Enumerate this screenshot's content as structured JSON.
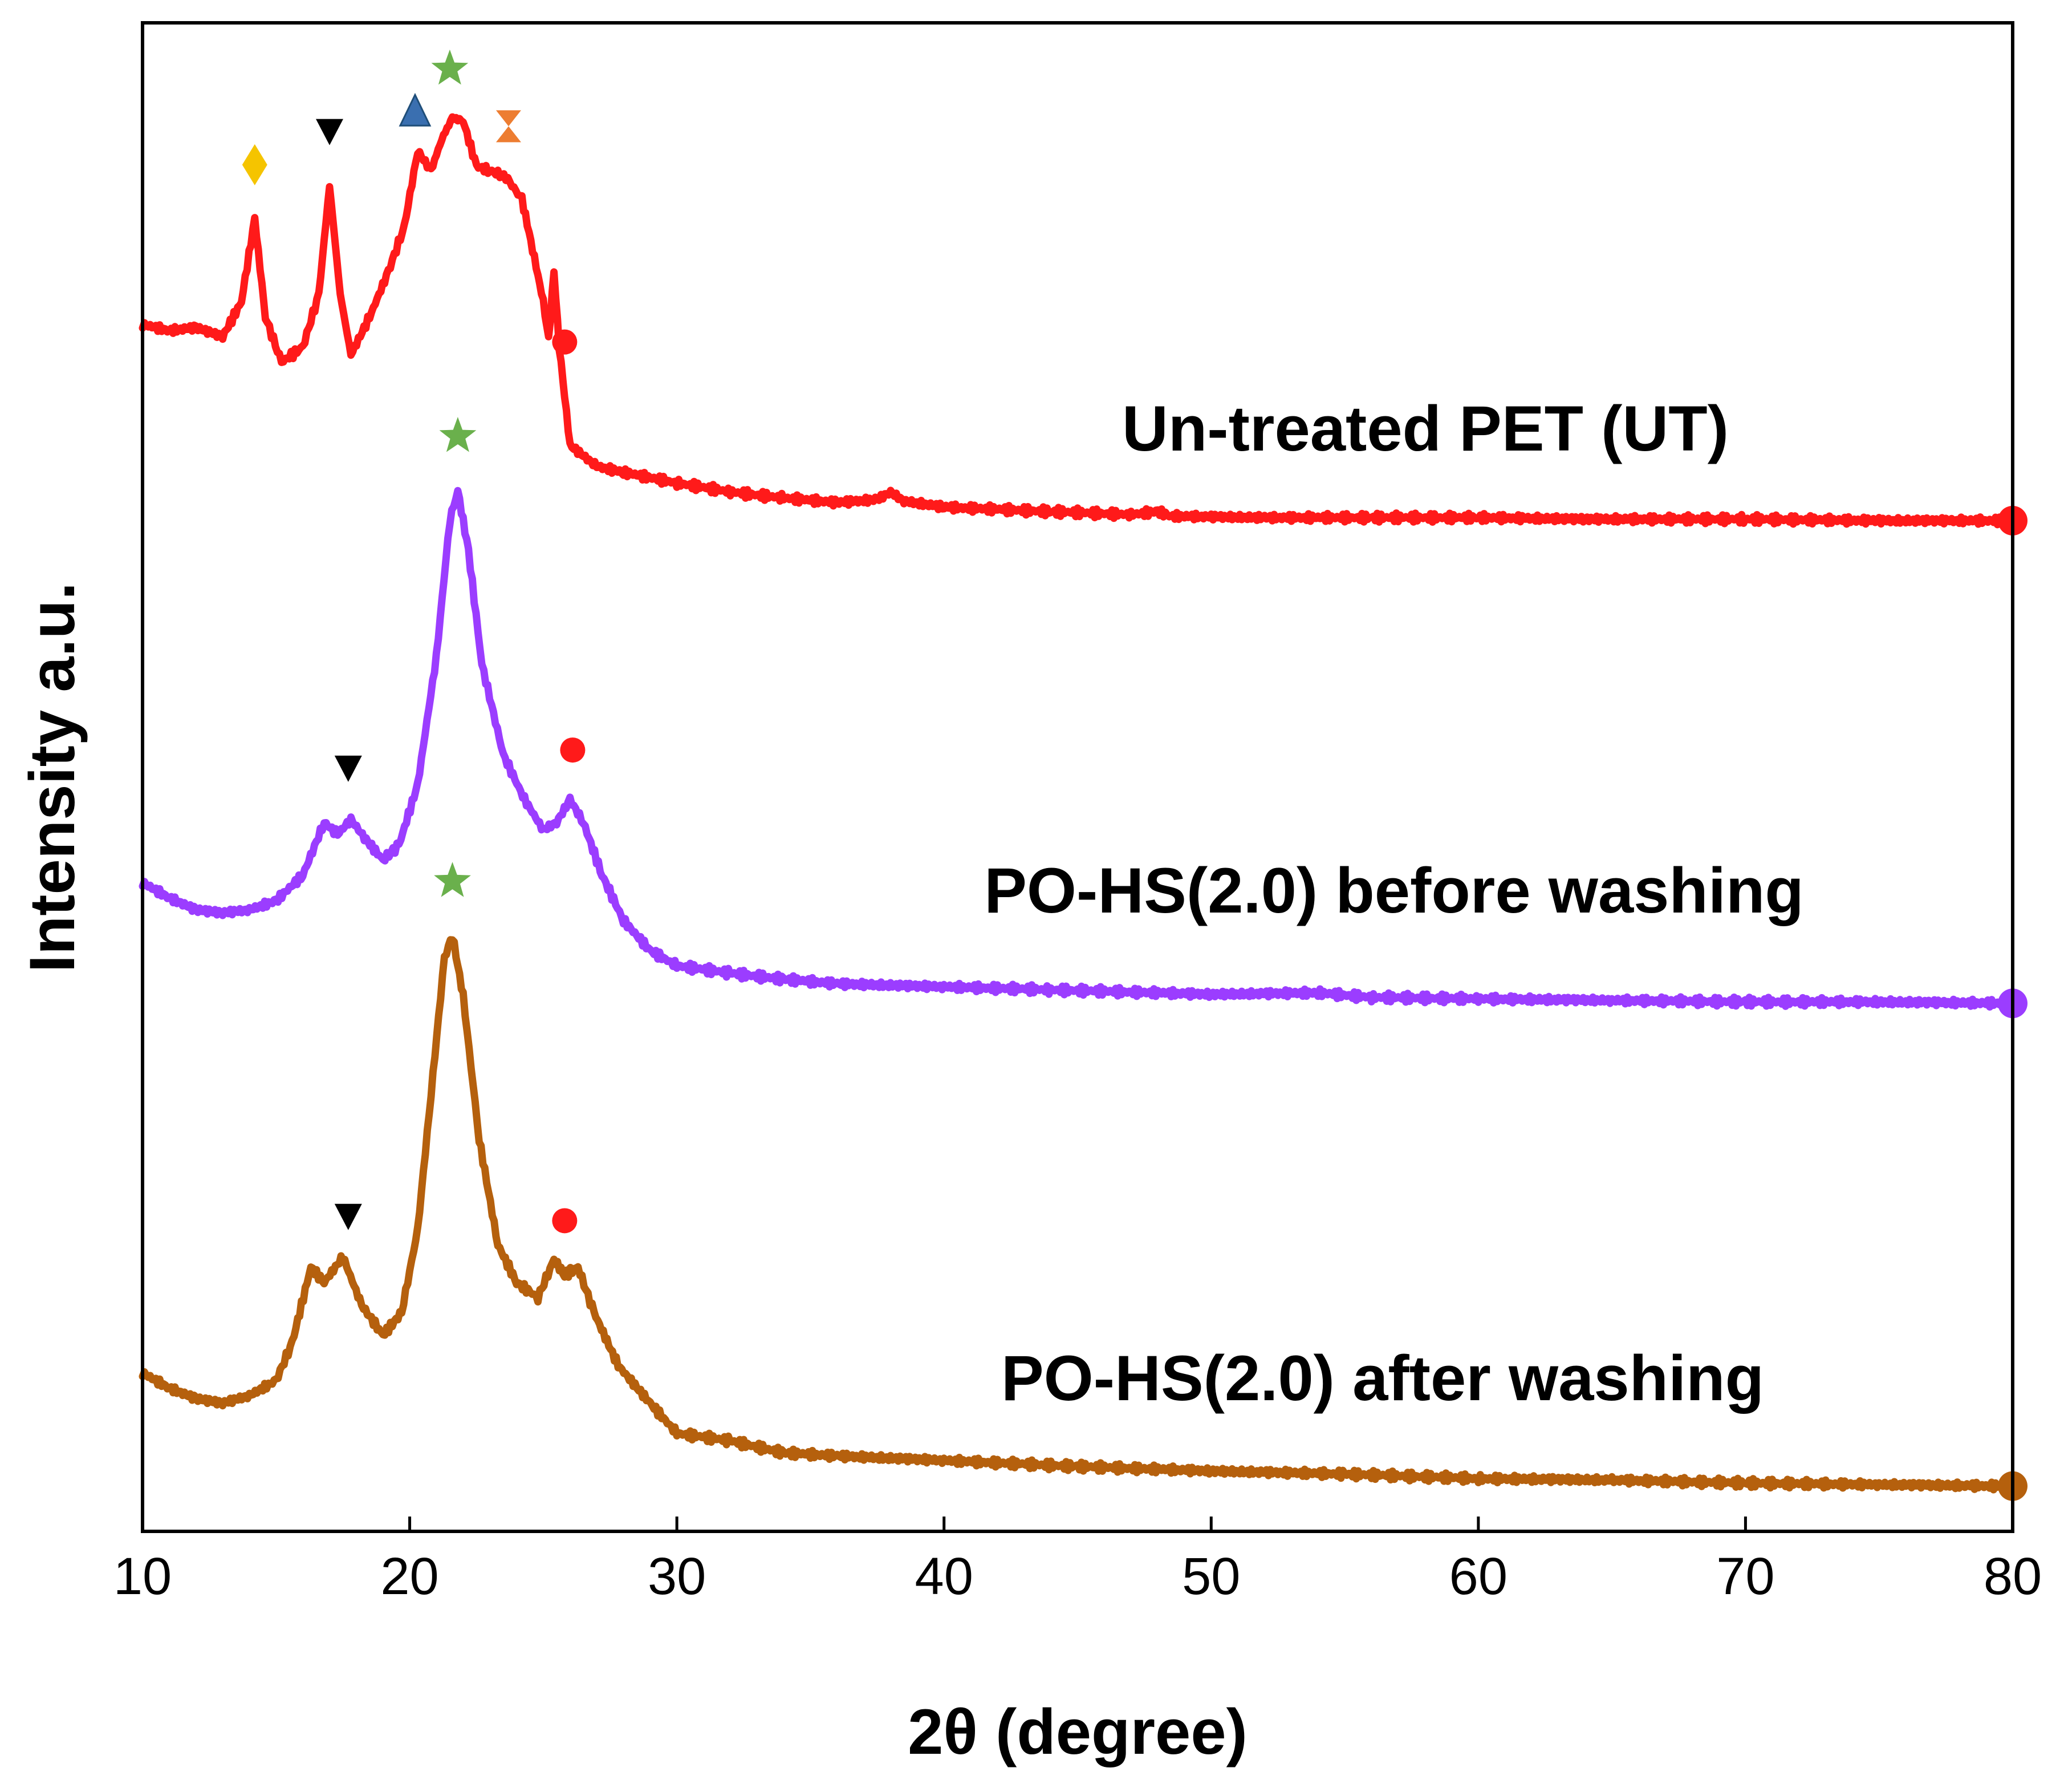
{
  "chart_data": {
    "type": "line",
    "title": "",
    "xlabel": "2θ (degree)",
    "ylabel": "Intensity a.u.",
    "xlim": [
      10,
      80
    ],
    "ylim": [
      0,
      100
    ],
    "x_ticks": [
      "10",
      "20",
      "30",
      "40",
      "50",
      "60",
      "70",
      "80"
    ],
    "grid": false,
    "legend": "inline labels beside each trace",
    "series": [
      {
        "name": "Un-treated PET (UT)",
        "color": "#ff1a1a",
        "baseline": 67,
        "points": [
          [
            10,
            80.0
          ],
          [
            11,
            79.6
          ],
          [
            12,
            79.8
          ],
          [
            13,
            79.2
          ],
          [
            13.7,
            81.5
          ],
          [
            14.2,
            87.0
          ],
          [
            14.6,
            80.5
          ],
          [
            15.2,
            77.5
          ],
          [
            16.0,
            78.5
          ],
          [
            16.6,
            82.0
          ],
          [
            17.0,
            89.2
          ],
          [
            17.4,
            82.0
          ],
          [
            17.8,
            78.0
          ],
          [
            18.5,
            80.5
          ],
          [
            19.2,
            83.5
          ],
          [
            19.8,
            86.5
          ],
          [
            20.3,
            91.5
          ],
          [
            20.8,
            90.2
          ],
          [
            21.2,
            92.3
          ],
          [
            21.6,
            93.7
          ],
          [
            22.0,
            93.5
          ],
          [
            22.5,
            90.5
          ],
          [
            23.0,
            90.2
          ],
          [
            23.6,
            89.8
          ],
          [
            24.2,
            88.3
          ],
          [
            24.6,
            85.0
          ],
          [
            25.0,
            81.5
          ],
          [
            25.2,
            79.0
          ],
          [
            25.4,
            83.5
          ],
          [
            25.6,
            78.5
          ],
          [
            26.0,
            72.0
          ],
          [
            27,
            70.6
          ],
          [
            28,
            70.2
          ],
          [
            30,
            69.5
          ],
          [
            32,
            68.9
          ],
          [
            34,
            68.5
          ],
          [
            36,
            68.2
          ],
          [
            37.5,
            68.4
          ],
          [
            38,
            68.9
          ],
          [
            38.5,
            68.3
          ],
          [
            40,
            67.9
          ],
          [
            44,
            67.6
          ],
          [
            47,
            67.4
          ],
          [
            48,
            67.6
          ],
          [
            48.5,
            67.3
          ],
          [
            52,
            67.2
          ],
          [
            56,
            67.2
          ],
          [
            60,
            67.2
          ],
          [
            64,
            67.1
          ],
          [
            70,
            67.1
          ],
          [
            75,
            67.0
          ],
          [
            80,
            67.0
          ]
        ],
        "annotations": [
          {
            "x": 14.2,
            "marker": "diamond",
            "color": "#f5c400"
          },
          {
            "x": 17.0,
            "marker": "down-triangle",
            "color": "#000000"
          },
          {
            "x": 20.2,
            "marker": "up-triangle",
            "color": "#3a6fb0"
          },
          {
            "x": 21.5,
            "marker": "star",
            "color": "#6ab04c"
          },
          {
            "x": 23.7,
            "marker": "hourglass",
            "color": "#ed7d31"
          },
          {
            "x": 25.8,
            "marker": "circle",
            "color": "#ff1a1a"
          }
        ]
      },
      {
        "name": "PO-HS(2.0) before washing",
        "color": "#9b3dff",
        "baseline": 35,
        "points": [
          [
            10,
            43.0
          ],
          [
            11,
            42.0
          ],
          [
            12,
            41.2
          ],
          [
            13,
            41.0
          ],
          [
            14,
            41.2
          ],
          [
            15,
            41.8
          ],
          [
            16,
            43.5
          ],
          [
            16.8,
            47.0
          ],
          [
            17.3,
            46.2
          ],
          [
            17.8,
            47.2
          ],
          [
            18.3,
            46.0
          ],
          [
            19.0,
            44.5
          ],
          [
            19.6,
            45.5
          ],
          [
            20.3,
            49.5
          ],
          [
            21.0,
            58.0
          ],
          [
            21.5,
            67.0
          ],
          [
            21.8,
            69.0
          ],
          [
            22.2,
            65.0
          ],
          [
            22.7,
            57.5
          ],
          [
            23.5,
            51.5
          ],
          [
            24.3,
            48.5
          ],
          [
            25.0,
            46.5
          ],
          [
            25.5,
            47.0
          ],
          [
            26.0,
            48.5
          ],
          [
            26.5,
            47.0
          ],
          [
            27.2,
            43.5
          ],
          [
            28,
            40.5
          ],
          [
            29,
            38.5
          ],
          [
            30,
            37.5
          ],
          [
            32,
            37.0
          ],
          [
            34,
            36.6
          ],
          [
            36,
            36.3
          ],
          [
            40,
            36.1
          ],
          [
            44,
            35.9
          ],
          [
            50,
            35.6
          ],
          [
            54,
            35.7
          ],
          [
            56,
            35.4
          ],
          [
            60,
            35.3
          ],
          [
            65,
            35.2
          ],
          [
            70,
            35.1
          ],
          [
            75,
            35.1
          ],
          [
            80,
            35.0
          ]
        ],
        "annotations": [
          {
            "x": 17.7,
            "marker": "down-triangle",
            "color": "#000000"
          },
          {
            "x": 21.8,
            "marker": "star",
            "color": "#6ab04c"
          },
          {
            "x": 26.1,
            "marker": "circle",
            "color": "#ff1a1a"
          }
        ]
      },
      {
        "name": "PO-HS(2.0) after washing",
        "color": "#b5600d",
        "baseline": 3,
        "points": [
          [
            10,
            10.5
          ],
          [
            11,
            9.5
          ],
          [
            12,
            8.8
          ],
          [
            13,
            8.5
          ],
          [
            14,
            9.0
          ],
          [
            15,
            10.0
          ],
          [
            15.6,
            12.5
          ],
          [
            16.3,
            17.5
          ],
          [
            16.8,
            16.5
          ],
          [
            17.5,
            18.2
          ],
          [
            18.2,
            15.0
          ],
          [
            19.0,
            13.0
          ],
          [
            19.7,
            14.5
          ],
          [
            20.3,
            20.0
          ],
          [
            20.8,
            29.0
          ],
          [
            21.3,
            38.0
          ],
          [
            21.6,
            39.5
          ],
          [
            22.0,
            35.5
          ],
          [
            22.6,
            26.0
          ],
          [
            23.3,
            19.0
          ],
          [
            24.0,
            16.5
          ],
          [
            24.8,
            15.5
          ],
          [
            25.4,
            18.0
          ],
          [
            25.8,
            17.0
          ],
          [
            26.3,
            17.5
          ],
          [
            26.9,
            14.5
          ],
          [
            27.8,
            11.0
          ],
          [
            29,
            8.5
          ],
          [
            30,
            6.5
          ],
          [
            32,
            6.0
          ],
          [
            34,
            5.2
          ],
          [
            36,
            5.0
          ],
          [
            40,
            4.7
          ],
          [
            45,
            4.3
          ],
          [
            50,
            4.0
          ],
          [
            55,
            3.8
          ],
          [
            60,
            3.5
          ],
          [
            65,
            3.4
          ],
          [
            70,
            3.2
          ],
          [
            75,
            3.1
          ],
          [
            80,
            3.0
          ]
        ],
        "annotations": [
          {
            "x": 17.7,
            "marker": "down-triangle",
            "color": "#000000"
          },
          {
            "x": 21.6,
            "marker": "star",
            "color": "#6ab04c"
          },
          {
            "x": 25.8,
            "marker": "circle",
            "color": "#ff1a1a"
          }
        ]
      }
    ]
  }
}
